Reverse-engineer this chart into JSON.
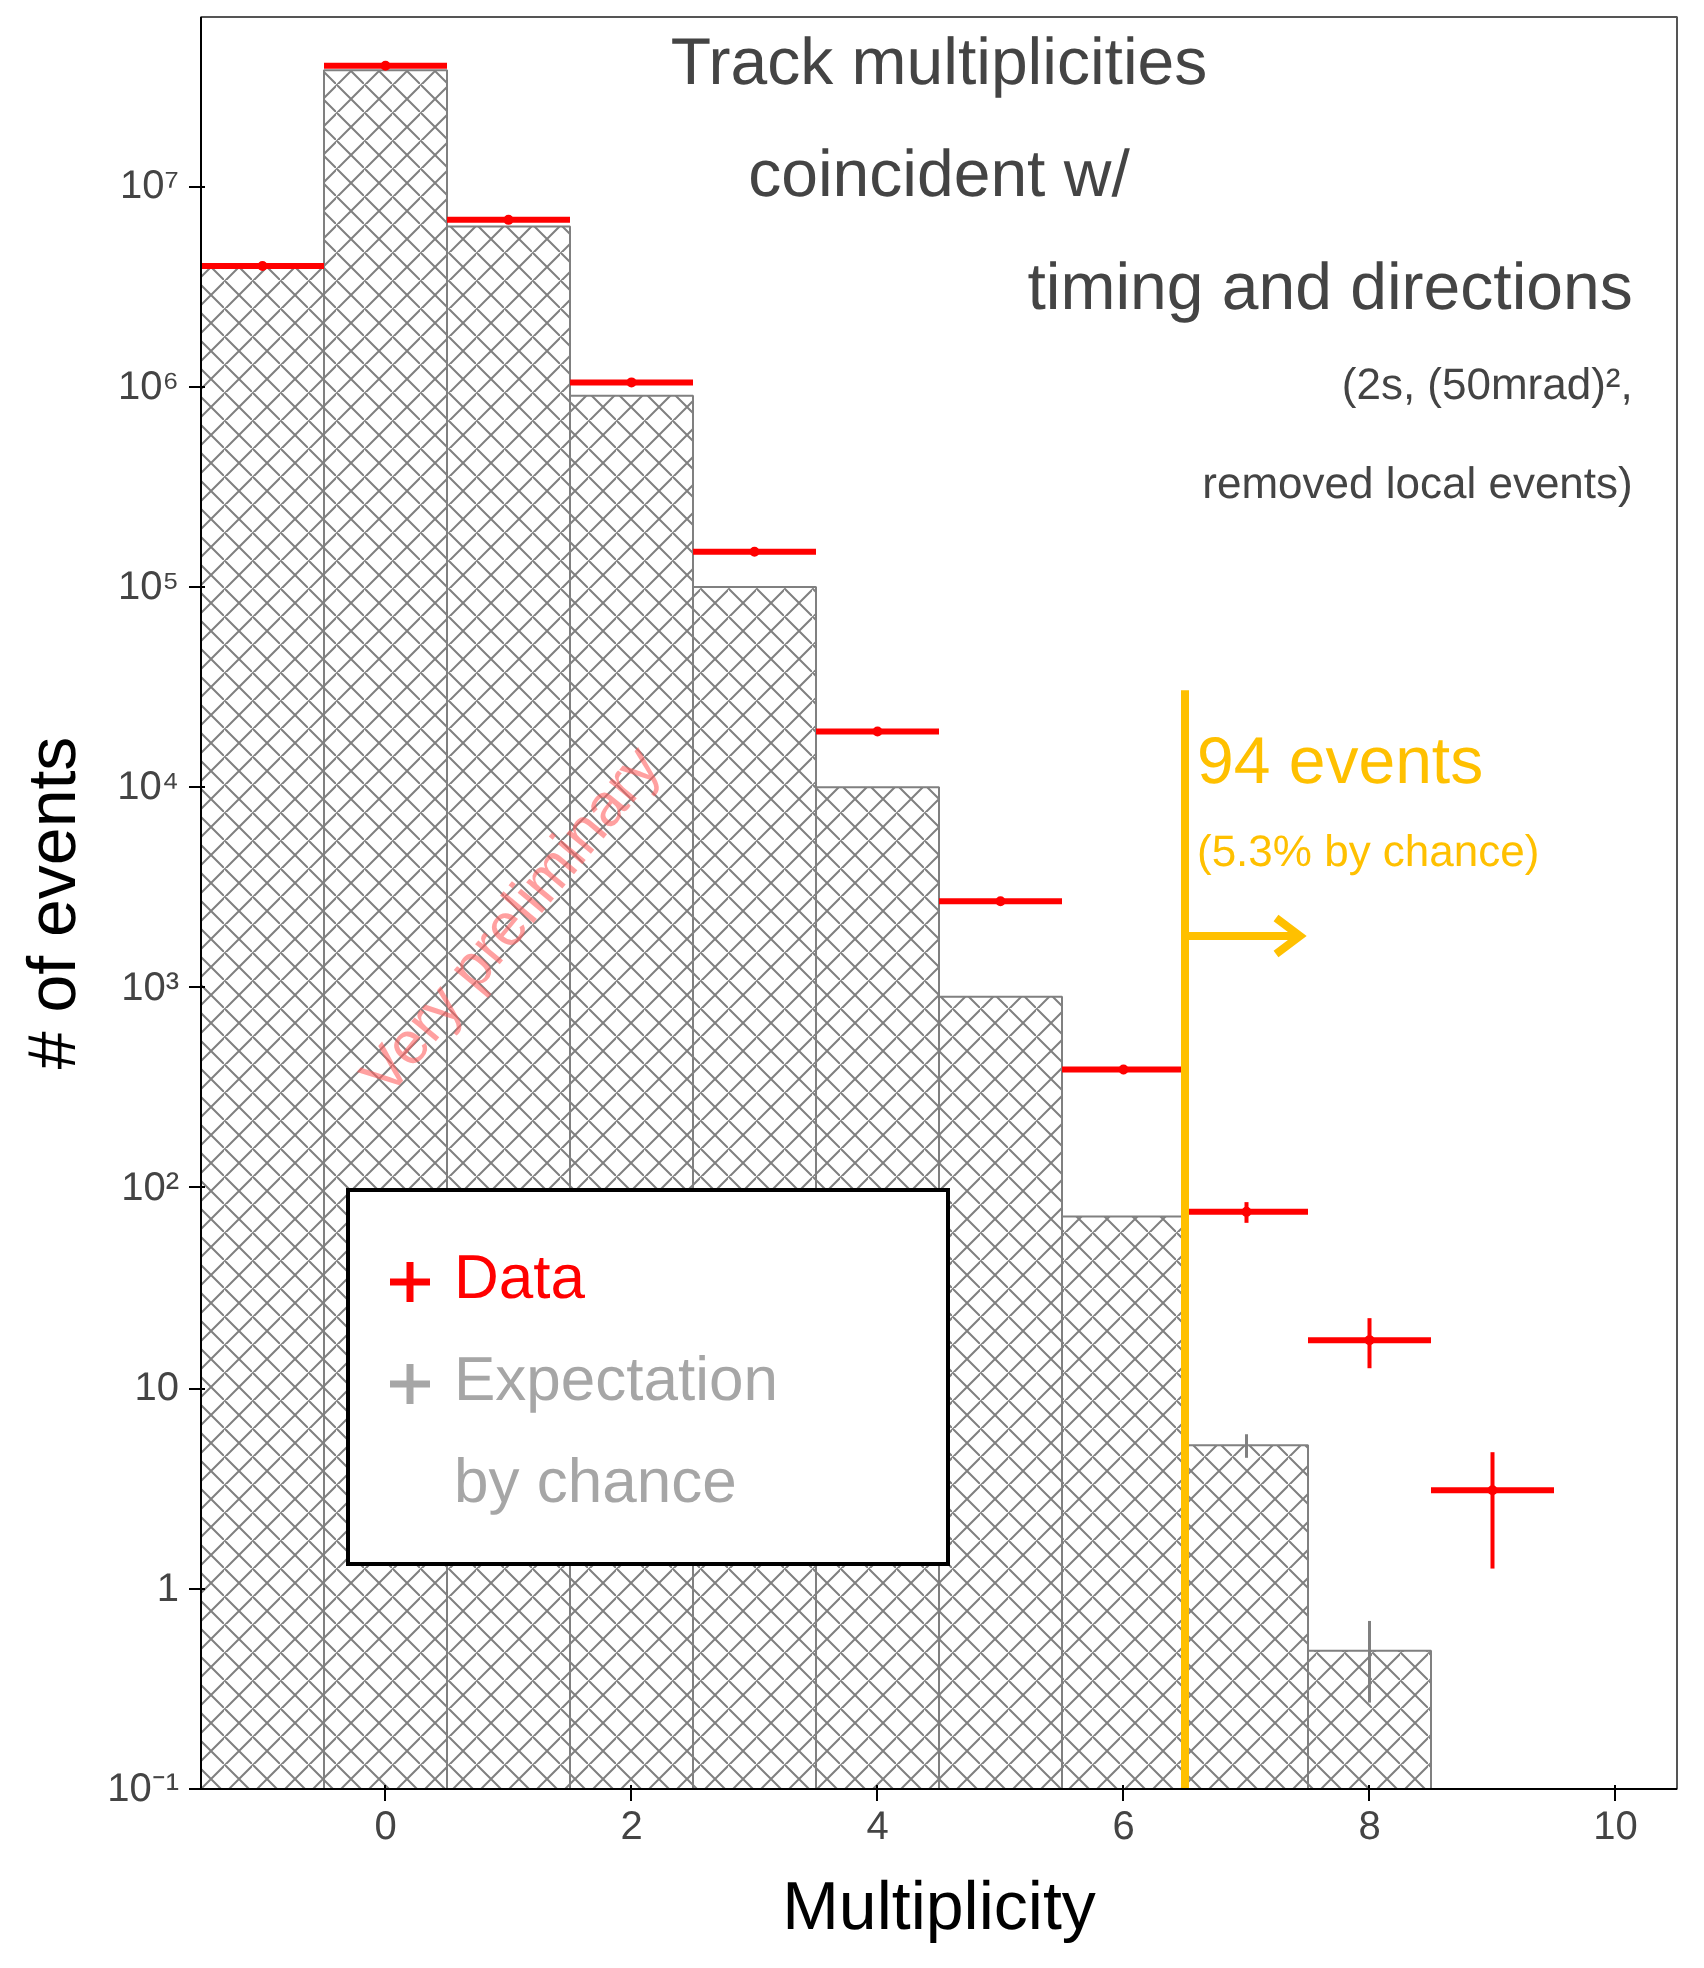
{
  "chart_data": {
    "type": "histogram",
    "title": "Track multiplicities\ncoincident w/\ntiming and directions",
    "subtitle": "(2s, (50mrad)²,\nremoved local events)",
    "xlabel": "Multiplicity",
    "ylabel": "# of events",
    "log": "y",
    "grid": false,
    "legend": "bottom left",
    "xlim": [
      -1.5,
      10.5
    ],
    "xticks": [
      0,
      2,
      4,
      6,
      8,
      10
    ],
    "ylim": [
      0.1,
      70000000
    ],
    "yticks": [
      {
        "value": 0.1,
        "label": "10⁻¹"
      },
      1,
      10,
      {
        "value": 100,
        "label": "10²"
      },
      {
        "value": 1000,
        "label": "10³"
      },
      {
        "value": 10000,
        "label": "10⁴"
      },
      {
        "value": 100000,
        "label": "10⁵"
      },
      {
        "value": 1000000,
        "label": "10⁶"
      },
      {
        "value": 10000000,
        "label": "10⁷"
      }
    ],
    "series": [
      {
        "name": "Expectation by chance",
        "color": "#808080",
        "bins": [
          -1.5,
          -0.5,
          0.5,
          1.5,
          2.5,
          3.5,
          4.5,
          5.5,
          6.5,
          7.5,
          8.5
        ],
        "values": [
          4000000,
          38000000,
          6300000,
          900000,
          100000,
          10000,
          900,
          72,
          5.2,
          0.49
        ],
        "errors": [
          null,
          null,
          null,
          null,
          null,
          null,
          null,
          null,
          [
            4.5,
            5.9
          ],
          [
            0.27,
            0.69
          ]
        ]
      },
      {
        "name": "Data",
        "type": "scatter",
        "marker": "circle",
        "color": "#ff0000",
        "x": [
          -1,
          0,
          1,
          2,
          3,
          4,
          5,
          6,
          7,
          8,
          9
        ],
        "values": [
          4000000,
          40000000,
          6800000,
          1050000,
          150000,
          19000,
          2700,
          390,
          76,
          17.4,
          3.1
        ],
        "errors": [
          null,
          null,
          null,
          null,
          null,
          null,
          null,
          20,
          9,
          [
            12.6,
            22.4
          ],
          [
            1.26,
            4.8
          ]
        ],
        "xerrors": [
          0.5,
          0.5,
          0.5,
          0.5,
          0.5,
          0.5,
          0.5,
          0.5,
          0.5,
          0.5,
          0.5
        ]
      }
    ],
    "ref_lines": [
      {
        "axis": "x",
        "value": 6.5,
        "label": "94 events",
        "color": "#ffc000"
      }
    ],
    "annotations": [
      "(5.3% by chance)",
      "Very preliminary"
    ]
  }
}
